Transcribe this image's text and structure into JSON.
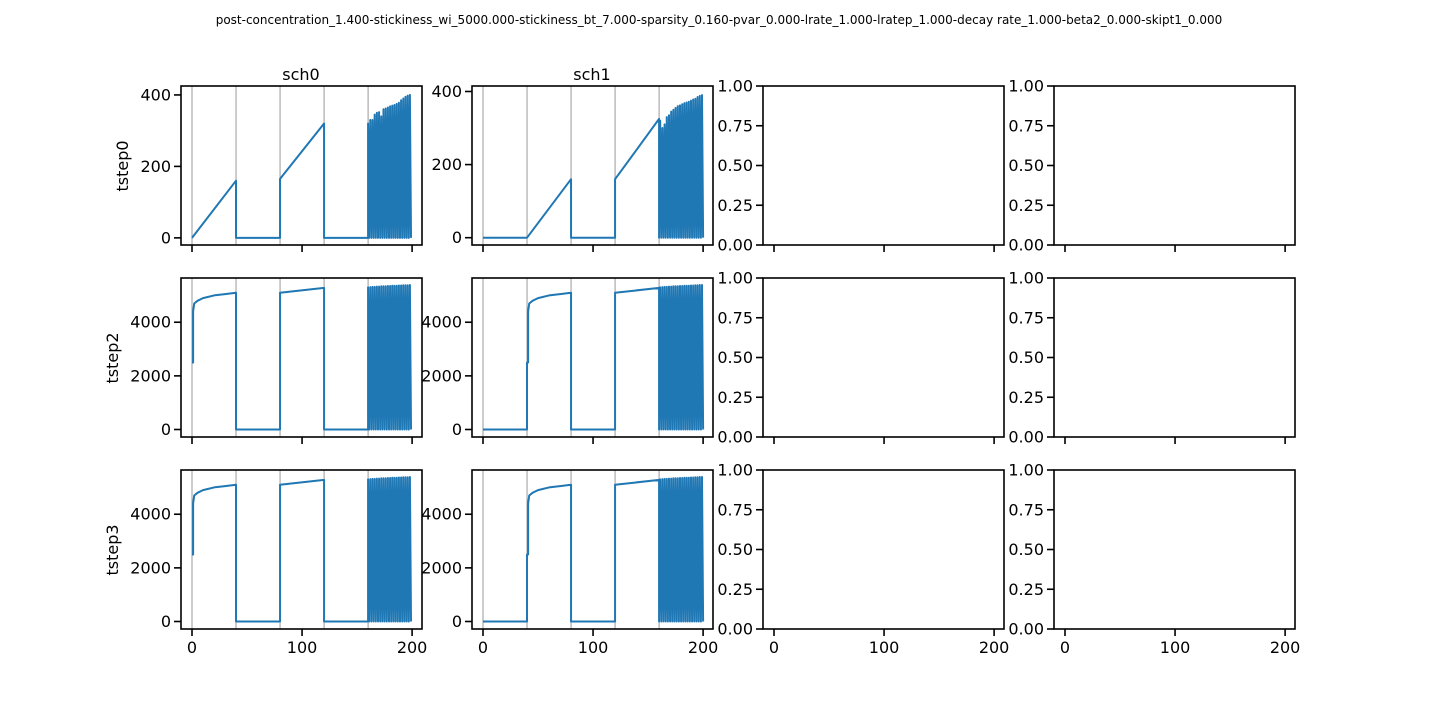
{
  "figure": {
    "suptitle": "post-concentration_1.400-stickiness_wi_5000.000-stickiness_bt_7.000-sparsity_0.160-pvar_0.000-lrate_1.000-lratep_1.000-decay rate_1.000-beta2_0.000-skipt1_0.000",
    "column_titles": [
      "sch0",
      "sch1",
      "",
      ""
    ],
    "row_labels": [
      "tstep0",
      "tstep2",
      "tstep3"
    ]
  },
  "colors": {
    "series": "#1f77b4",
    "vline": "#808080",
    "axes": "#000000",
    "background": "#ffffff"
  },
  "chart_data": {
    "type": "line",
    "layout": "grid 3 rows x 4 columns, shared x axis",
    "xlim": [
      -10,
      209
    ],
    "xticks": [
      0,
      100,
      200
    ],
    "event_lines_x": [
      0,
      40,
      80,
      120,
      160
    ],
    "empty_panel_yticks": [
      "0.00",
      "0.25",
      "0.50",
      "0.75",
      "1.00"
    ],
    "panels": [
      {
        "row": "tstep0",
        "col": "sch0",
        "ylim": [
          -20,
          425
        ],
        "yticks": [
          0,
          200,
          400
        ],
        "series_key": "row0_sch0"
      },
      {
        "row": "tstep0",
        "col": "sch1",
        "ylim": [
          -20,
          415
        ],
        "yticks": [
          0,
          200,
          400
        ],
        "series_key": "row0_sch1"
      },
      {
        "row": "tstep2",
        "col": "sch0",
        "ylim": [
          -280,
          5650
        ],
        "yticks": [
          0,
          2000,
          4000
        ],
        "series_key": "rowN_sch0"
      },
      {
        "row": "tstep2",
        "col": "sch1",
        "ylim": [
          -280,
          5650
        ],
        "yticks": [
          0,
          2000,
          4000
        ],
        "series_key": "rowN_sch1"
      },
      {
        "row": "tstep3",
        "col": "sch0",
        "ylim": [
          -280,
          5650
        ],
        "yticks": [
          0,
          2000,
          4000
        ],
        "series_key": "rowN_sch0"
      },
      {
        "row": "tstep3",
        "col": "sch1",
        "ylim": [
          -280,
          5650
        ],
        "yticks": [
          0,
          2000,
          4000
        ],
        "series_key": "rowN_sch1"
      }
    ],
    "series": {
      "row0_sch0": [
        [
          0,
          0
        ],
        [
          40,
          160
        ],
        [
          40,
          0
        ],
        [
          80,
          0
        ],
        [
          80,
          165
        ],
        [
          120,
          320
        ],
        [
          120,
          0
        ],
        [
          160,
          0
        ],
        [
          160,
          320
        ],
        [
          161,
          0
        ],
        [
          162,
          330
        ],
        [
          163,
          0
        ],
        [
          164,
          330
        ],
        [
          165,
          0
        ],
        [
          166,
          345
        ],
        [
          167,
          0
        ],
        [
          168,
          350
        ],
        [
          169,
          0
        ],
        [
          170,
          352
        ],
        [
          171,
          0
        ],
        [
          172,
          340
        ],
        [
          173,
          0
        ],
        [
          174,
          360
        ],
        [
          175,
          0
        ],
        [
          176,
          362
        ],
        [
          177,
          0
        ],
        [
          178,
          365
        ],
        [
          179,
          0
        ],
        [
          180,
          368
        ],
        [
          181,
          0
        ],
        [
          182,
          370
        ],
        [
          183,
          0
        ],
        [
          184,
          372
        ],
        [
          185,
          0
        ],
        [
          186,
          375
        ],
        [
          187,
          0
        ],
        [
          188,
          378
        ],
        [
          189,
          0
        ],
        [
          190,
          385
        ],
        [
          191,
          0
        ],
        [
          192,
          390
        ],
        [
          193,
          0
        ],
        [
          194,
          395
        ],
        [
          195,
          0
        ],
        [
          196,
          398
        ],
        [
          197,
          0
        ],
        [
          198,
          400
        ],
        [
          199,
          0
        ]
      ],
      "row0_sch1": [
        [
          0,
          0
        ],
        [
          40,
          0
        ],
        [
          80,
          160
        ],
        [
          80,
          0
        ],
        [
          120,
          0
        ],
        [
          120,
          160
        ],
        [
          160,
          325
        ],
        [
          160,
          0
        ],
        [
          161,
          320
        ],
        [
          162,
          0
        ],
        [
          163,
          300
        ],
        [
          164,
          0
        ],
        [
          165,
          310
        ],
        [
          166,
          0
        ],
        [
          167,
          330
        ],
        [
          168,
          0
        ],
        [
          169,
          335
        ],
        [
          170,
          0
        ],
        [
          171,
          345
        ],
        [
          172,
          0
        ],
        [
          173,
          350
        ],
        [
          174,
          0
        ],
        [
          175,
          355
        ],
        [
          176,
          0
        ],
        [
          177,
          360
        ],
        [
          178,
          0
        ],
        [
          179,
          362
        ],
        [
          180,
          0
        ],
        [
          181,
          365
        ],
        [
          182,
          0
        ],
        [
          183,
          368
        ],
        [
          184,
          0
        ],
        [
          185,
          370
        ],
        [
          186,
          0
        ],
        [
          187,
          372
        ],
        [
          188,
          0
        ],
        [
          189,
          375
        ],
        [
          190,
          0
        ],
        [
          191,
          378
        ],
        [
          192,
          0
        ],
        [
          193,
          380
        ],
        [
          194,
          0
        ],
        [
          195,
          385
        ],
        [
          196,
          0
        ],
        [
          197,
          388
        ],
        [
          198,
          0
        ],
        [
          199,
          390
        ],
        [
          200,
          0
        ]
      ],
      "rowN_sch0": [
        [
          0,
          2500
        ],
        [
          1,
          2500
        ],
        [
          1,
          4400
        ],
        [
          2,
          4700
        ],
        [
          5,
          4800
        ],
        [
          10,
          4900
        ],
        [
          20,
          5000
        ],
        [
          30,
          5050
        ],
        [
          40,
          5100
        ],
        [
          40,
          0
        ],
        [
          80,
          0
        ],
        [
          80,
          5100
        ],
        [
          120,
          5280
        ],
        [
          120,
          0
        ],
        [
          160,
          0
        ],
        [
          160,
          5300
        ],
        [
          161,
          0
        ],
        [
          162,
          5310
        ],
        [
          163,
          0
        ],
        [
          164,
          5320
        ],
        [
          165,
          0
        ],
        [
          166,
          5320
        ],
        [
          167,
          0
        ],
        [
          168,
          5330
        ],
        [
          169,
          0
        ],
        [
          170,
          5330
        ],
        [
          171,
          0
        ],
        [
          172,
          5340
        ],
        [
          173,
          0
        ],
        [
          174,
          5340
        ],
        [
          175,
          0
        ],
        [
          176,
          5340
        ],
        [
          177,
          0
        ],
        [
          178,
          5350
        ],
        [
          179,
          0
        ],
        [
          180,
          5350
        ],
        [
          181,
          0
        ],
        [
          182,
          5360
        ],
        [
          183,
          0
        ],
        [
          184,
          5360
        ],
        [
          185,
          0
        ],
        [
          186,
          5360
        ],
        [
          187,
          0
        ],
        [
          188,
          5370
        ],
        [
          189,
          0
        ],
        [
          190,
          5370
        ],
        [
          191,
          0
        ],
        [
          192,
          5380
        ],
        [
          193,
          0
        ],
        [
          194,
          5380
        ],
        [
          195,
          0
        ],
        [
          196,
          5380
        ],
        [
          197,
          0
        ],
        [
          198,
          5390
        ],
        [
          199,
          0
        ]
      ],
      "rowN_sch1": [
        [
          0,
          0
        ],
        [
          40,
          0
        ],
        [
          40,
          2500
        ],
        [
          41,
          2500
        ],
        [
          41,
          4400
        ],
        [
          42,
          4700
        ],
        [
          45,
          4800
        ],
        [
          50,
          4900
        ],
        [
          60,
          5000
        ],
        [
          70,
          5050
        ],
        [
          80,
          5100
        ],
        [
          80,
          0
        ],
        [
          120,
          0
        ],
        [
          120,
          5100
        ],
        [
          160,
          5280
        ],
        [
          160,
          0
        ],
        [
          161,
          5300
        ],
        [
          162,
          0
        ],
        [
          163,
          5310
        ],
        [
          164,
          0
        ],
        [
          165,
          5320
        ],
        [
          166,
          0
        ],
        [
          167,
          5320
        ],
        [
          168,
          0
        ],
        [
          169,
          5330
        ],
        [
          170,
          0
        ],
        [
          171,
          5330
        ],
        [
          172,
          0
        ],
        [
          173,
          5340
        ],
        [
          174,
          0
        ],
        [
          175,
          5340
        ],
        [
          176,
          0
        ],
        [
          177,
          5340
        ],
        [
          178,
          0
        ],
        [
          179,
          5350
        ],
        [
          180,
          0
        ],
        [
          181,
          5350
        ],
        [
          182,
          0
        ],
        [
          183,
          5360
        ],
        [
          184,
          0
        ],
        [
          185,
          5360
        ],
        [
          186,
          0
        ],
        [
          187,
          5360
        ],
        [
          188,
          0
        ],
        [
          189,
          5370
        ],
        [
          190,
          0
        ],
        [
          191,
          5370
        ],
        [
          192,
          0
        ],
        [
          193,
          5380
        ],
        [
          194,
          0
        ],
        [
          195,
          5380
        ],
        [
          196,
          0
        ],
        [
          197,
          5390
        ],
        [
          198,
          0
        ],
        [
          199,
          5390
        ],
        [
          200,
          0
        ]
      ]
    }
  }
}
